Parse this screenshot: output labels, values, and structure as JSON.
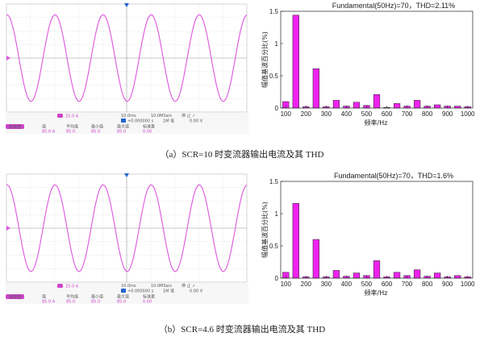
{
  "panels": [
    {
      "caption": "（a）SCR=10 时变流器输出电流及其 THD",
      "scope": {
        "timebase": "10.0ms",
        "sample_rate": "10.0MSa/s",
        "mode": "停 止 ✓",
        "time_offset": "+0.000000 s",
        "dc_label": "1M 低",
        "volt": "0.00 V",
        "ch_label": "25.0 A",
        "trig_badge": "有效值",
        "headers": [
          "值",
          "平均值",
          "最小值",
          "最大值",
          "标准差"
        ],
        "values": [
          "85.0 A",
          "85.0",
          "85.0",
          "85.0",
          "0.00"
        ]
      },
      "chart_data": {
        "type": "bar",
        "title": "Fundamental(50Hz)=70，THD=2.11%",
        "xlabel": "频率/Hz",
        "ylabel": "幅值基波百分比(%)",
        "ylim": [
          0,
          1.5
        ],
        "yticks": [
          "0",
          "0.5",
          "1",
          "1.5"
        ],
        "xticks": [
          100,
          200,
          300,
          400,
          500,
          600,
          700,
          800,
          900,
          1000
        ],
        "x": [
          100,
          150,
          200,
          250,
          300,
          350,
          400,
          450,
          500,
          550,
          600,
          650,
          700,
          750,
          800,
          850,
          900,
          950,
          1000
        ],
        "values": [
          0.1,
          1.44,
          0.02,
          0.61,
          0.02,
          0.12,
          0.03,
          0.09,
          0.04,
          0.21,
          0.01,
          0.07,
          0.03,
          0.12,
          0.03,
          0.05,
          0.03,
          0.03,
          0.02
        ]
      }
    },
    {
      "caption": "（b）SCR=4.6 时变流器输出电流及其 THD",
      "scope": {
        "timebase": "10.0ms",
        "sample_rate": "10.0MSa/s",
        "mode": "停 止 ✓",
        "time_offset": "+0.000000 s",
        "dc_label": "1M 低",
        "volt": "0.00 V",
        "ch_label": "25.0 A",
        "trig_badge": "有效值",
        "headers": [
          "值",
          "平均值",
          "最小值",
          "最大值",
          "标准差"
        ],
        "values": [
          "85.0 A",
          "85.0",
          "85.0",
          "85.0",
          "0.00"
        ]
      },
      "chart_data": {
        "type": "bar",
        "title": "Fundamental(50Hz)=70，THD=1.6%",
        "xlabel": "频率/Hz",
        "ylabel": "幅值基波百分比(%)",
        "ylim": [
          0,
          1.5
        ],
        "yticks": [
          "0",
          "0.5",
          "1",
          "1.5"
        ],
        "xticks": [
          100,
          200,
          300,
          400,
          500,
          600,
          700,
          800,
          900,
          1000
        ],
        "x": [
          100,
          150,
          200,
          250,
          300,
          350,
          400,
          450,
          500,
          550,
          600,
          650,
          700,
          750,
          800,
          850,
          900,
          950,
          1000
        ],
        "values": [
          0.09,
          1.16,
          0.02,
          0.6,
          0.02,
          0.12,
          0.03,
          0.08,
          0.04,
          0.27,
          0.02,
          0.09,
          0.04,
          0.13,
          0.03,
          0.08,
          0.02,
          0.04,
          0.02
        ]
      }
    }
  ],
  "colors": {
    "bar": "#ee22ee",
    "bar_stroke": "#222222",
    "wave": "#dd55dd",
    "grid": "#cccccc",
    "scope_bg": "#ffffff"
  }
}
